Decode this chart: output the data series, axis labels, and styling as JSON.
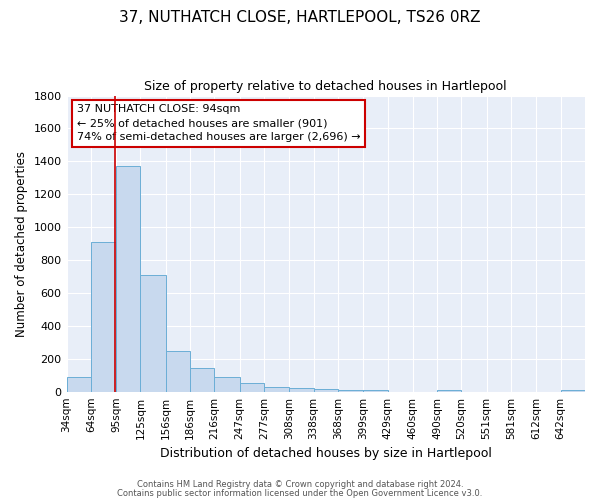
{
  "title": "37, NUTHATCH CLOSE, HARTLEPOOL, TS26 0RZ",
  "subtitle": "Size of property relative to detached houses in Hartlepool",
  "xlabel": "Distribution of detached houses by size in Hartlepool",
  "ylabel": "Number of detached properties",
  "bar_labels": [
    "34sqm",
    "64sqm",
    "95sqm",
    "125sqm",
    "156sqm",
    "186sqm",
    "216sqm",
    "247sqm",
    "277sqm",
    "308sqm",
    "338sqm",
    "368sqm",
    "399sqm",
    "429sqm",
    "460sqm",
    "490sqm",
    "520sqm",
    "551sqm",
    "581sqm",
    "612sqm",
    "642sqm"
  ],
  "bar_values": [
    90,
    910,
    1370,
    710,
    250,
    145,
    90,
    55,
    30,
    20,
    15,
    12,
    10,
    0,
    0,
    10,
    0,
    0,
    0,
    0,
    10
  ],
  "bar_color": "#c8d9ee",
  "bar_edge_color": "#6baed6",
  "ylim": [
    0,
    1800
  ],
  "yticks": [
    0,
    200,
    400,
    600,
    800,
    1000,
    1200,
    1400,
    1600,
    1800
  ],
  "property_line_x": 94,
  "property_line_color": "#cc0000",
  "annotation_title": "37 NUTHATCH CLOSE: 94sqm",
  "annotation_line1": "← 25% of detached houses are smaller (901)",
  "annotation_line2": "74% of semi-detached houses are larger (2,696) →",
  "annotation_box_facecolor": "#ffffff",
  "annotation_box_edgecolor": "#cc0000",
  "footer1": "Contains HM Land Registry data © Crown copyright and database right 2024.",
  "footer2": "Contains public sector information licensed under the Open Government Licence v3.0.",
  "fig_facecolor": "#ffffff",
  "plot_facecolor": "#e8eef8",
  "grid_color": "#ffffff",
  "bin_edges": [
    34,
    64,
    95,
    125,
    156,
    186,
    216,
    247,
    277,
    308,
    338,
    368,
    399,
    429,
    460,
    490,
    520,
    551,
    581,
    612,
    642,
    672
  ]
}
